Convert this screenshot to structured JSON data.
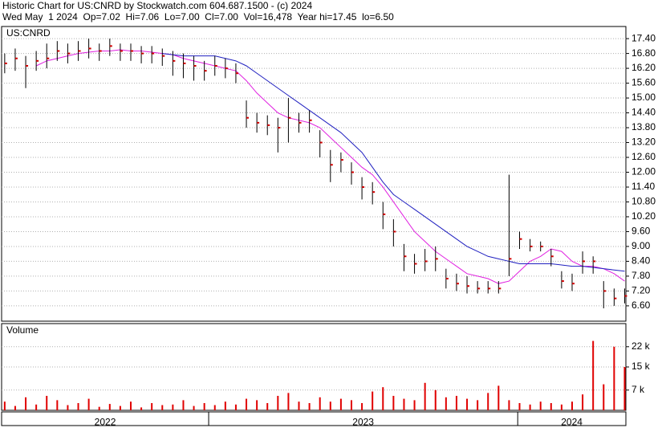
{
  "header": {
    "line1": "Historic Chart for US:CNRD by Stockwatch.com 604.687.1500 - (c) 2024",
    "line2": "Wed May  1 2024  Op=7.02  Hi=7.06  Lo=7.00  Cl=7.00  Vol=16,478  Year hi=17.45  lo=6.50"
  },
  "chart_data": [
    {
      "type": "price",
      "title": "US:CNRD",
      "x": [
        2022.34,
        2022.374,
        2022.408,
        2022.442,
        2022.476,
        2022.51,
        2022.544,
        2022.578,
        2022.612,
        2022.646,
        2022.68,
        2022.714,
        2022.748,
        2022.782,
        2022.816,
        2022.85,
        2022.884,
        2022.918,
        2022.952,
        2022.986,
        2023.02,
        2023.054,
        2023.088,
        2023.122,
        2023.156,
        2023.19,
        2023.224,
        2023.258,
        2023.292,
        2023.326,
        2023.36,
        2023.394,
        2023.428,
        2023.462,
        2023.496,
        2023.53,
        2023.564,
        2023.598,
        2023.632,
        2023.666,
        2023.7,
        2023.734,
        2023.768,
        2023.802,
        2023.836,
        2023.87,
        2023.904,
        2023.938,
        2023.972,
        2024.006,
        2024.04,
        2024.074,
        2024.108,
        2024.142,
        2024.176,
        2024.21,
        2024.244,
        2024.278,
        2024.312,
        2024.346
      ],
      "high": [
        16.8,
        17.0,
        16.7,
        16.9,
        17.2,
        17.3,
        17.2,
        17.3,
        17.4,
        17.2,
        17.4,
        17.2,
        17.2,
        17.1,
        17.1,
        17.0,
        16.9,
        16.8,
        16.7,
        16.5,
        16.7,
        16.6,
        16.4,
        14.9,
        14.4,
        14.3,
        14.2,
        15.0,
        14.4,
        14.5,
        13.7,
        12.9,
        12.8,
        12.4,
        11.8,
        11.6,
        10.8,
        10.1,
        9.1,
        8.7,
        8.9,
        9.0,
        8.1,
        7.9,
        7.8,
        7.6,
        7.6,
        7.6,
        11.9,
        9.6,
        9.3,
        9.2,
        8.9,
        8.0,
        7.9,
        8.8,
        8.6,
        7.6,
        7.3,
        7.3
      ],
      "low": [
        16.0,
        16.1,
        15.4,
        16.1,
        16.2,
        16.5,
        16.4,
        16.5,
        16.6,
        16.5,
        16.7,
        16.5,
        16.5,
        16.4,
        16.4,
        16.3,
        15.9,
        15.8,
        15.7,
        15.7,
        15.9,
        15.8,
        15.6,
        13.8,
        13.6,
        13.5,
        12.8,
        13.2,
        13.6,
        13.6,
        12.6,
        11.6,
        12.0,
        11.5,
        10.9,
        10.7,
        9.7,
        9.0,
        8.0,
        7.9,
        8.0,
        8.0,
        7.3,
        7.2,
        7.1,
        7.1,
        7.1,
        7.1,
        7.8,
        8.9,
        8.8,
        8.8,
        8.2,
        7.3,
        7.2,
        7.9,
        7.9,
        6.5,
        6.6,
        6.7
      ],
      "close": [
        16.4,
        16.6,
        16.3,
        16.5,
        16.6,
        16.9,
        16.8,
        16.9,
        17.0,
        16.9,
        17.1,
        16.9,
        16.9,
        16.8,
        16.8,
        16.7,
        16.5,
        16.4,
        16.3,
        16.1,
        16.3,
        16.2,
        16.0,
        14.2,
        14.0,
        13.9,
        13.8,
        14.2,
        14.0,
        14.1,
        13.2,
        12.3,
        12.5,
        12.0,
        11.4,
        11.2,
        10.3,
        9.6,
        8.6,
        8.3,
        8.4,
        8.5,
        7.7,
        7.5,
        7.4,
        7.3,
        7.3,
        7.3,
        8.5,
        9.3,
        9.0,
        9.0,
        8.6,
        7.6,
        7.5,
        8.4,
        8.4,
        7.2,
        6.9,
        7.0
      ],
      "bar_color": "#000000",
      "close_color": "#d00000",
      "moving_averages": [
        {
          "color": "#e020e0",
          "values": [
            null,
            null,
            null,
            16.3,
            16.5,
            16.6,
            16.7,
            16.8,
            16.85,
            16.9,
            16.9,
            16.95,
            16.9,
            16.9,
            16.85,
            16.8,
            16.75,
            16.6,
            16.5,
            16.4,
            16.3,
            16.2,
            16.1,
            15.7,
            15.2,
            14.8,
            14.4,
            14.2,
            14.1,
            14.0,
            13.8,
            13.4,
            13.0,
            12.6,
            12.2,
            11.9,
            11.4,
            10.8,
            10.2,
            9.6,
            9.2,
            8.8,
            8.5,
            8.2,
            7.9,
            7.8,
            7.7,
            7.5,
            7.6,
            8.0,
            8.4,
            8.6,
            8.9,
            8.8,
            8.4,
            8.2,
            8.2,
            8.1,
            7.9,
            7.6
          ]
        },
        {
          "color": "#2020c0",
          "values": [
            null,
            null,
            null,
            null,
            null,
            null,
            null,
            null,
            null,
            null,
            null,
            null,
            null,
            null,
            null,
            16.8,
            16.75,
            16.7,
            16.7,
            16.7,
            16.7,
            16.6,
            16.5,
            16.3,
            16.0,
            15.7,
            15.4,
            15.1,
            14.8,
            14.5,
            14.2,
            13.9,
            13.6,
            13.2,
            12.8,
            12.2,
            11.6,
            11.1,
            10.8,
            10.5,
            10.2,
            9.9,
            9.6,
            9.3,
            9.0,
            8.8,
            8.6,
            8.5,
            8.4,
            8.3,
            8.3,
            8.3,
            8.3,
            8.25,
            8.2,
            8.2,
            8.15,
            8.1,
            8.05,
            8.0
          ]
        }
      ],
      "xlim": [
        2022.33,
        2024.35
      ],
      "xticks": [
        {
          "value": 2022,
          "label": "2022"
        },
        {
          "value": 2023,
          "label": "2023"
        },
        {
          "value": 2024,
          "label": "2024"
        }
      ],
      "ylim": [
        5.98,
        17.89
      ],
      "yticks": [
        {
          "value": 6.6,
          "label": "6.60"
        },
        {
          "value": 7.2,
          "label": "7.20"
        },
        {
          "value": 7.8,
          "label": "7.80"
        },
        {
          "value": 8.4,
          "label": "8.40"
        },
        {
          "value": 9,
          "label": "9.00"
        },
        {
          "value": 9.6,
          "label": "9.60"
        },
        {
          "value": 10.2,
          "label": "10.20"
        },
        {
          "value": 10.8,
          "label": "10.80"
        },
        {
          "value": 11.4,
          "label": "11.40"
        },
        {
          "value": 12,
          "label": "12.00"
        },
        {
          "value": 12.6,
          "label": "12.60"
        },
        {
          "value": 13.2,
          "label": "13.20"
        },
        {
          "value": 13.8,
          "label": "13.80"
        },
        {
          "value": 14.4,
          "label": "14.40"
        },
        {
          "value": 15,
          "label": "15.00"
        },
        {
          "value": 15.6,
          "label": "15.60"
        },
        {
          "value": 16.2,
          "label": "16.20"
        },
        {
          "value": 16.8,
          "label": "16.80"
        },
        {
          "value": 17.4,
          "label": "17.40"
        }
      ],
      "grid": true
    },
    {
      "type": "volume",
      "title": "Volume",
      "color": "#e00000",
      "values": [
        3000,
        1500,
        4500,
        2000,
        5000,
        3500,
        1800,
        2500,
        4000,
        1200,
        2200,
        1500,
        3000,
        1000,
        2500,
        1800,
        2000,
        3500,
        1500,
        2500,
        1800,
        3000,
        2000,
        4000,
        3500,
        2500,
        5000,
        6000,
        3000,
        2500,
        4500,
        3000,
        4000,
        3500,
        2500,
        6500,
        8000,
        5000,
        4000,
        3500,
        9500,
        7000,
        4500,
        5000,
        4000,
        3500,
        6000,
        8500,
        3500,
        2500,
        2000,
        3000,
        2500,
        2000,
        3000,
        5500,
        24000,
        9000,
        22000,
        15000
      ],
      "ylim": [
        0,
        30000
      ],
      "yticks": [
        {
          "value": 7000,
          "label": "7 k"
        },
        {
          "value": 15000,
          "label": "15 k"
        },
        {
          "value": 22000,
          "label": "22 k"
        }
      ],
      "grid": true
    }
  ]
}
